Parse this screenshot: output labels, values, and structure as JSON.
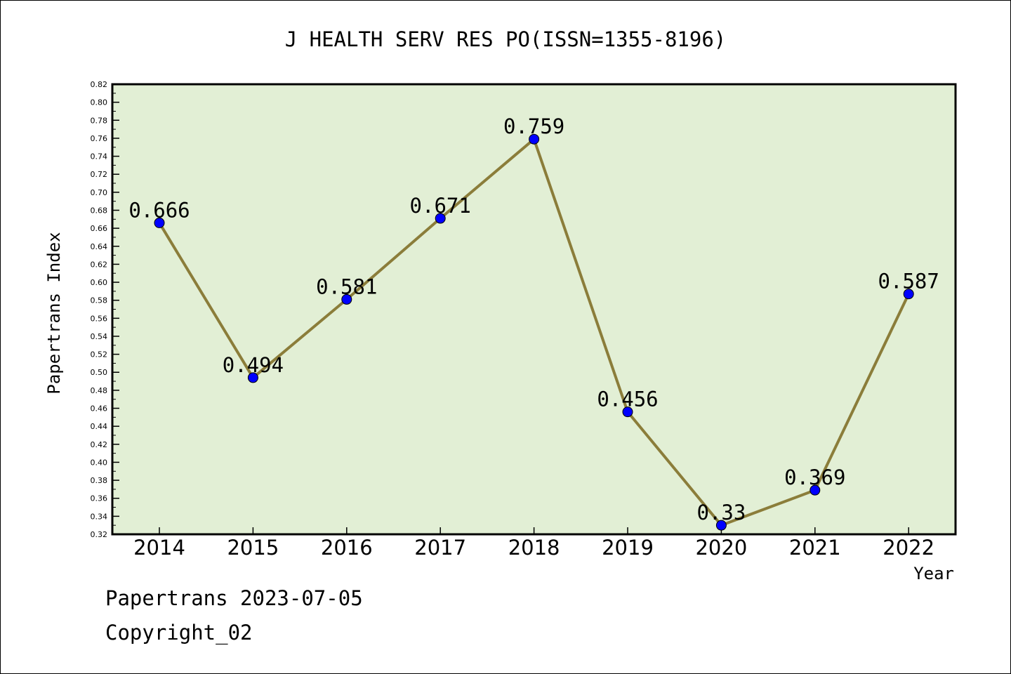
{
  "chart_data": {
    "type": "line",
    "title": "J HEALTH SERV RES PO(ISSN=1355-8196)",
    "xlabel": "Year",
    "ylabel": "Papertrans Index",
    "categories": [
      "2014",
      "2015",
      "2016",
      "2017",
      "2018",
      "2019",
      "2020",
      "2021",
      "2022"
    ],
    "values": [
      0.666,
      0.494,
      0.581,
      0.671,
      0.759,
      0.456,
      0.33,
      0.369,
      0.587
    ],
    "data_labels": [
      "0.666",
      "0.494",
      "0.581",
      "0.671",
      "0.759",
      "0.456",
      "0.33",
      "0.369",
      "0.587"
    ],
    "ylim": [
      0.32,
      0.82
    ],
    "y_ticks": [
      "0.32",
      "0.34",
      "0.36",
      "0.38",
      "0.40",
      "0.42",
      "0.44",
      "0.46",
      "0.48",
      "0.50",
      "0.52",
      "0.54",
      "0.56",
      "0.58",
      "0.60",
      "0.62",
      "0.64",
      "0.66",
      "0.68",
      "0.70",
      "0.72",
      "0.74",
      "0.76",
      "0.78",
      "0.80",
      "0.82"
    ],
    "grid": false,
    "colors": {
      "plot_background": "#e2efd5",
      "line": "#8b7d3a",
      "marker": "#0000ff"
    }
  },
  "footer": {
    "line1": "Papertrans 2023-07-05",
    "line2": "Copyright_02"
  }
}
